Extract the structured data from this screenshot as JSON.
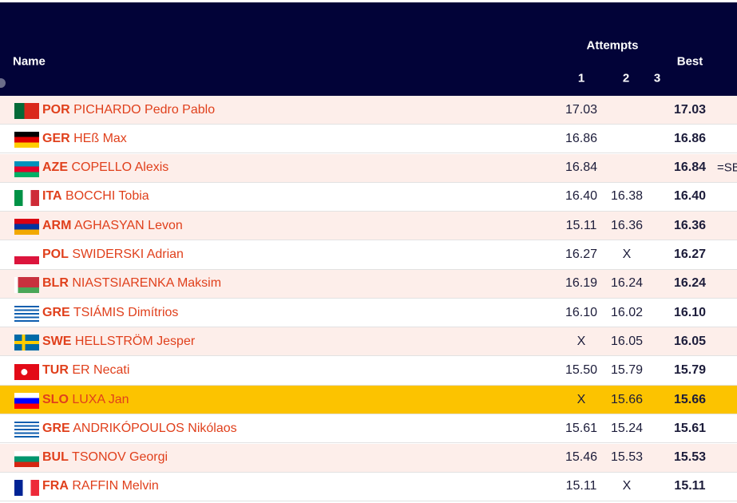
{
  "header": {
    "name": "Name",
    "attempts": "Attempts",
    "attempt_numbers": [
      "1",
      "2",
      "3"
    ],
    "best": "Best"
  },
  "table": {
    "highlight_row": 10,
    "rows": [
      {
        "country": "POR",
        "athlete": "PICHARDO Pedro Pablo",
        "attempt_1": "17.03",
        "best": "17.03"
      },
      {
        "country": "GER",
        "athlete": "HEß Max",
        "attempt_1": "16.86",
        "best": "16.86"
      },
      {
        "country": "AZE",
        "athlete": "COPELLO Alexis",
        "attempt_1": "16.84",
        "best": "16.84",
        "note": "=SB"
      },
      {
        "country": "ITA",
        "athlete": "BOCCHI Tobia",
        "attempt_1": "16.40",
        "attempt_2": "16.38",
        "best": "16.40"
      },
      {
        "country": "ARM",
        "athlete": "AGHASYAN Levon",
        "attempt_1": "15.11",
        "attempt_2": "16.36",
        "best": "16.36"
      },
      {
        "country": "POL",
        "athlete": "SWIDERSKI Adrian",
        "attempt_1": "16.27",
        "attempt_2": "X",
        "best": "16.27"
      },
      {
        "country": "BLR",
        "athlete": "NIASTSIARENKA Maksim",
        "attempt_1": "16.19",
        "attempt_2": "16.24",
        "best": "16.24"
      },
      {
        "country": "GRE",
        "athlete": "TSIÁMIS Dimítrios",
        "attempt_1": "16.10",
        "attempt_2": "16.02",
        "best": "16.10"
      },
      {
        "country": "SWE",
        "athlete": "HELLSTRÖM Jesper",
        "attempt_1": "X",
        "attempt_2": "16.05",
        "best": "16.05"
      },
      {
        "country": "TUR",
        "athlete": "ER Necati",
        "attempt_1": "15.50",
        "attempt_2": "15.79",
        "best": "15.79"
      },
      {
        "country": "SLO",
        "athlete": "LUXA Jan",
        "attempt_1": "X",
        "attempt_2": "15.66",
        "best": "15.66"
      },
      {
        "country": "GRE",
        "athlete": "ANDRIKÓPOULOS Nikólaos",
        "attempt_1": "15.61",
        "attempt_2": "15.24",
        "best": "15.61"
      },
      {
        "country": "BUL",
        "athlete": "TSONOV Georgi",
        "attempt_1": "15.46",
        "attempt_2": "15.53",
        "best": "15.53"
      },
      {
        "country": "FRA",
        "athlete": "RAFFIN Melvin",
        "attempt_1": "15.11",
        "attempt_2": "X",
        "best": "15.11"
      }
    ]
  }
}
